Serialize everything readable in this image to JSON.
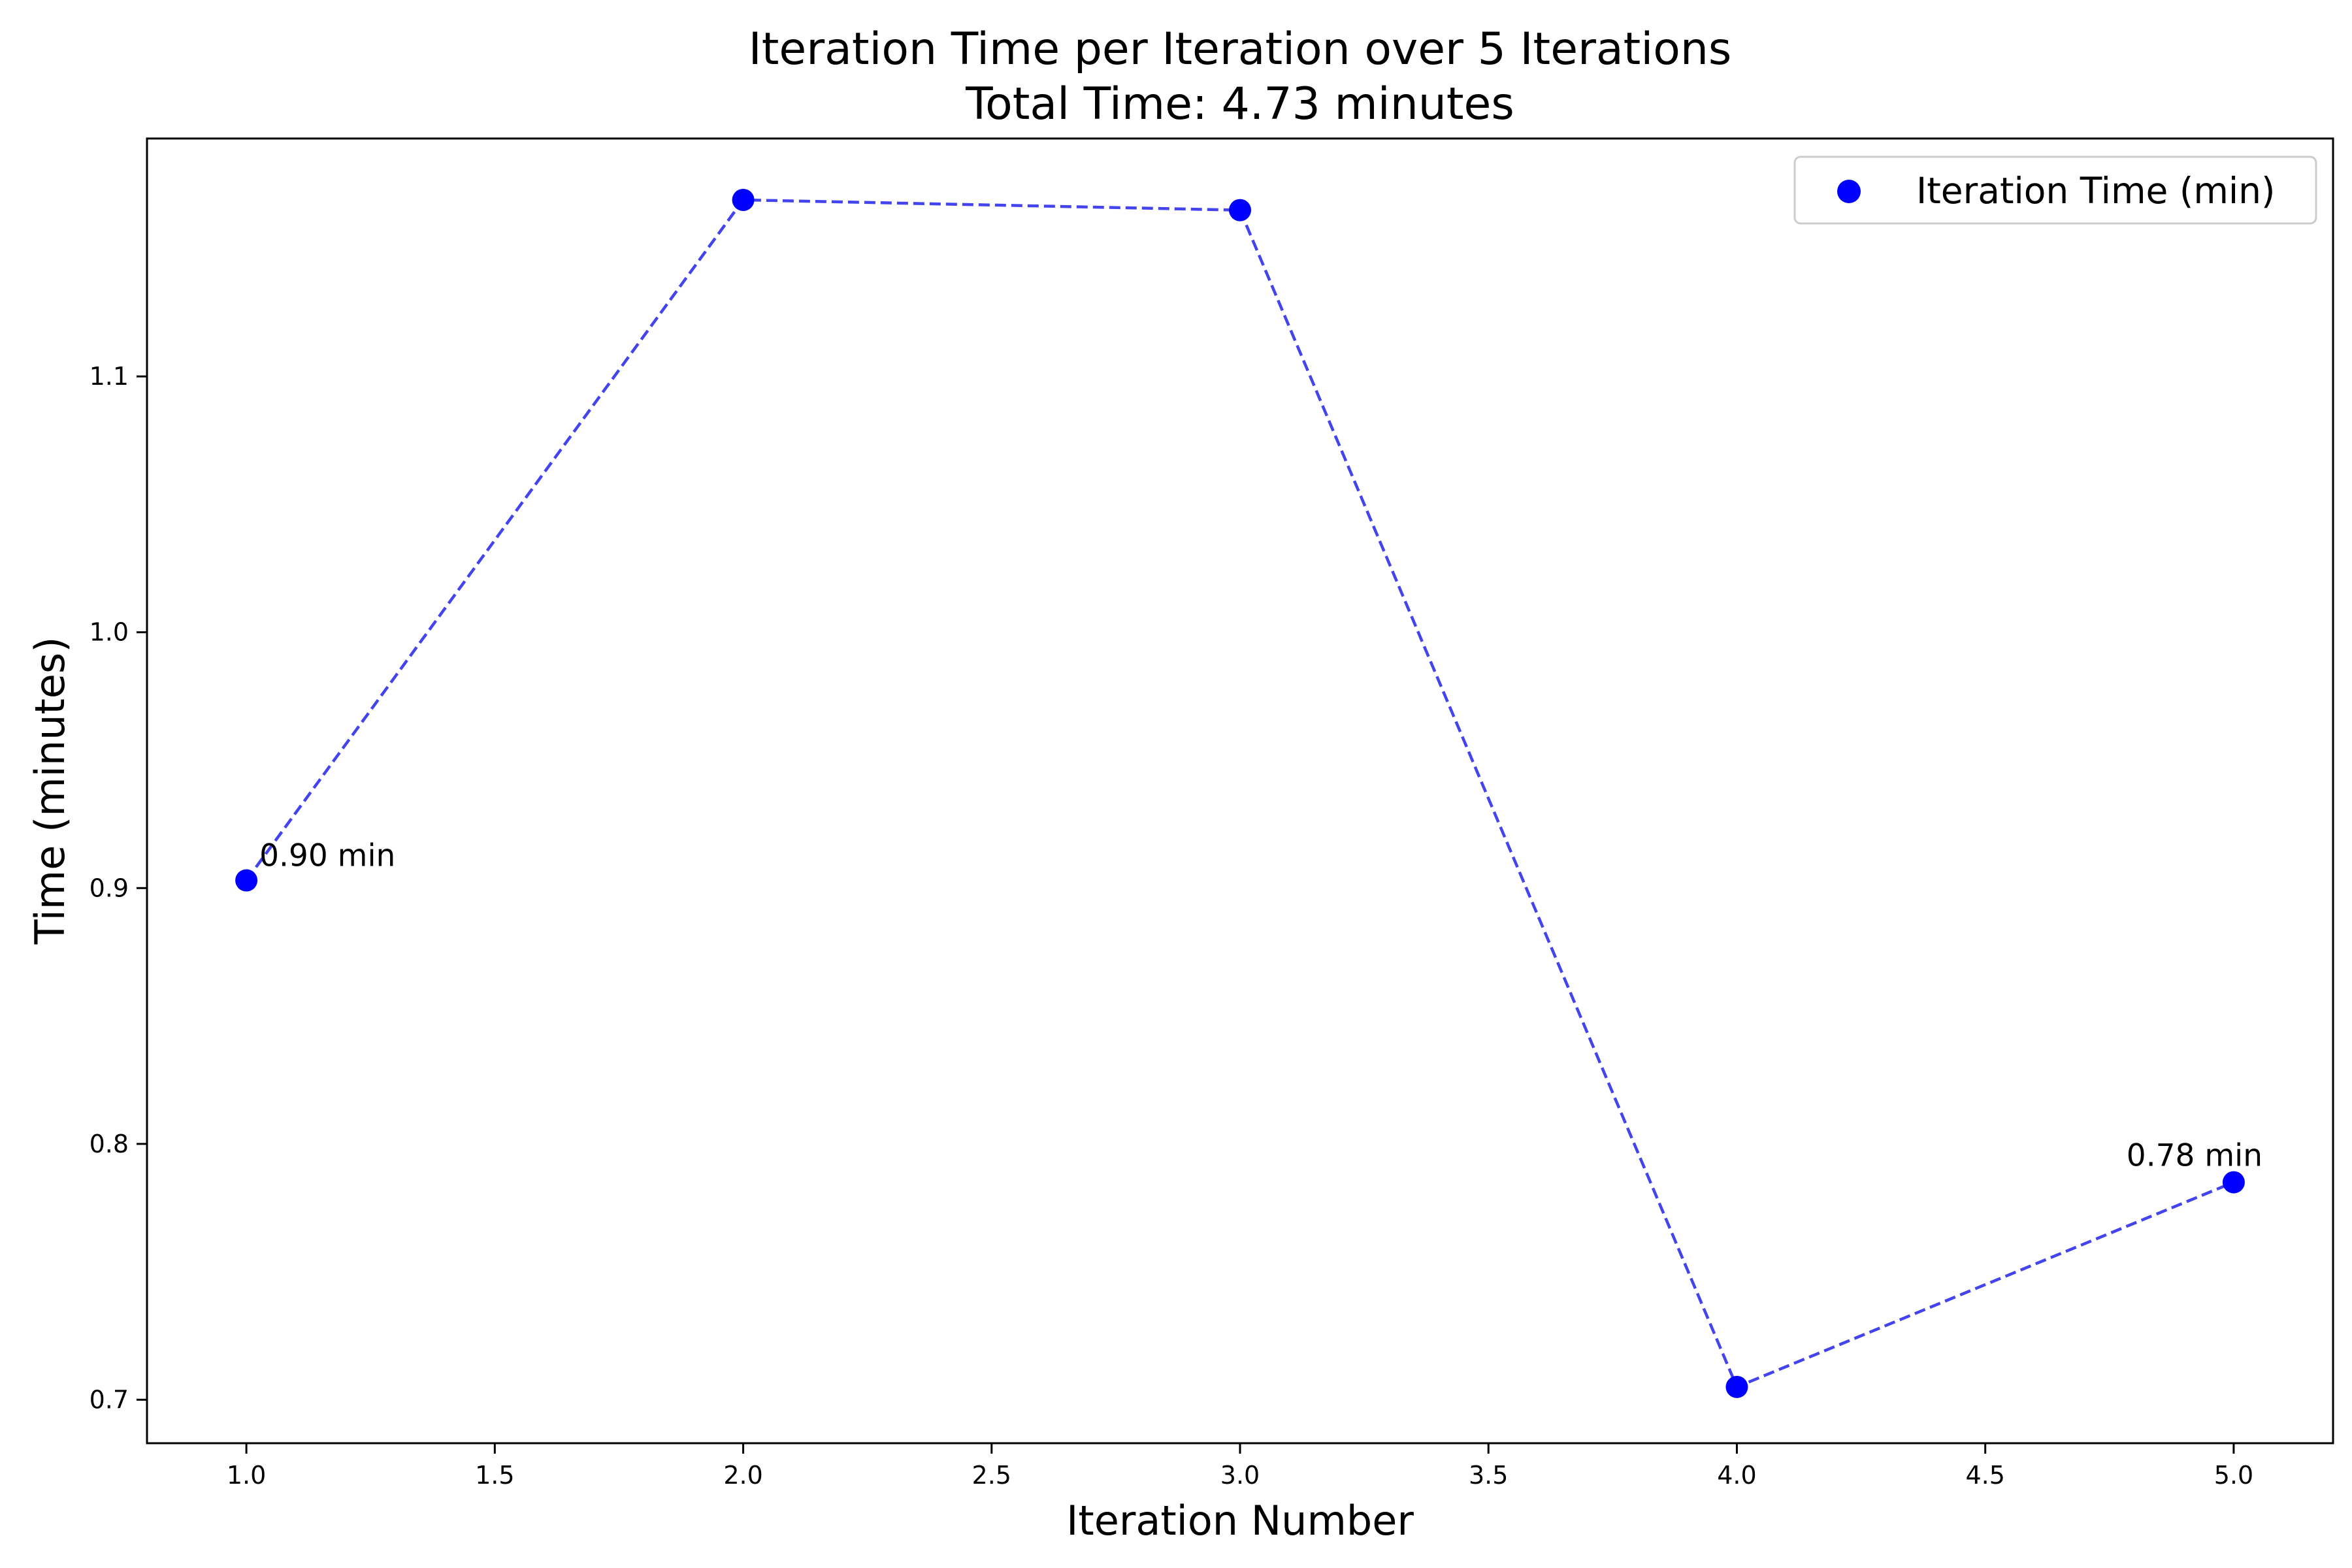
{
  "chart_data": {
    "type": "line",
    "title": "Iteration Time per Iteration over 5 Iterations",
    "subtitle": "Total Time: 4.73 minutes",
    "xlabel": "Iteration Number",
    "ylabel": "Time (minutes)",
    "xlim": [
      0.8,
      5.2
    ],
    "ylim": [
      0.683,
      1.193
    ],
    "x_ticks": [
      1.0,
      1.5,
      2.0,
      2.5,
      3.0,
      3.5,
      4.0,
      4.5,
      5.0
    ],
    "x_tick_labels": [
      "1.0",
      "1.5",
      "2.0",
      "2.5",
      "3.0",
      "3.5",
      "4.0",
      "4.5",
      "5.0"
    ],
    "y_ticks": [
      0.7,
      0.8,
      0.9,
      1.0,
      1.1
    ],
    "y_tick_labels": [
      "0.7",
      "0.8",
      "0.9",
      "1.0",
      "1.1"
    ],
    "grid": false,
    "legend_position": "upper right",
    "series": [
      {
        "name": "Iteration Time (min)",
        "x": [
          1,
          2,
          3,
          4,
          5
        ],
        "y": [
          0.903,
          1.169,
          1.165,
          0.705,
          0.785
        ],
        "color": "#0000ff",
        "line_color": "#4444ee",
        "line_style": "dashed",
        "marker": "circle"
      }
    ],
    "annotations": [
      {
        "text": "0.90 min",
        "x": 1,
        "y": 0.903
      },
      {
        "text": "0.78 min",
        "x": 5,
        "y": 0.785
      }
    ]
  }
}
